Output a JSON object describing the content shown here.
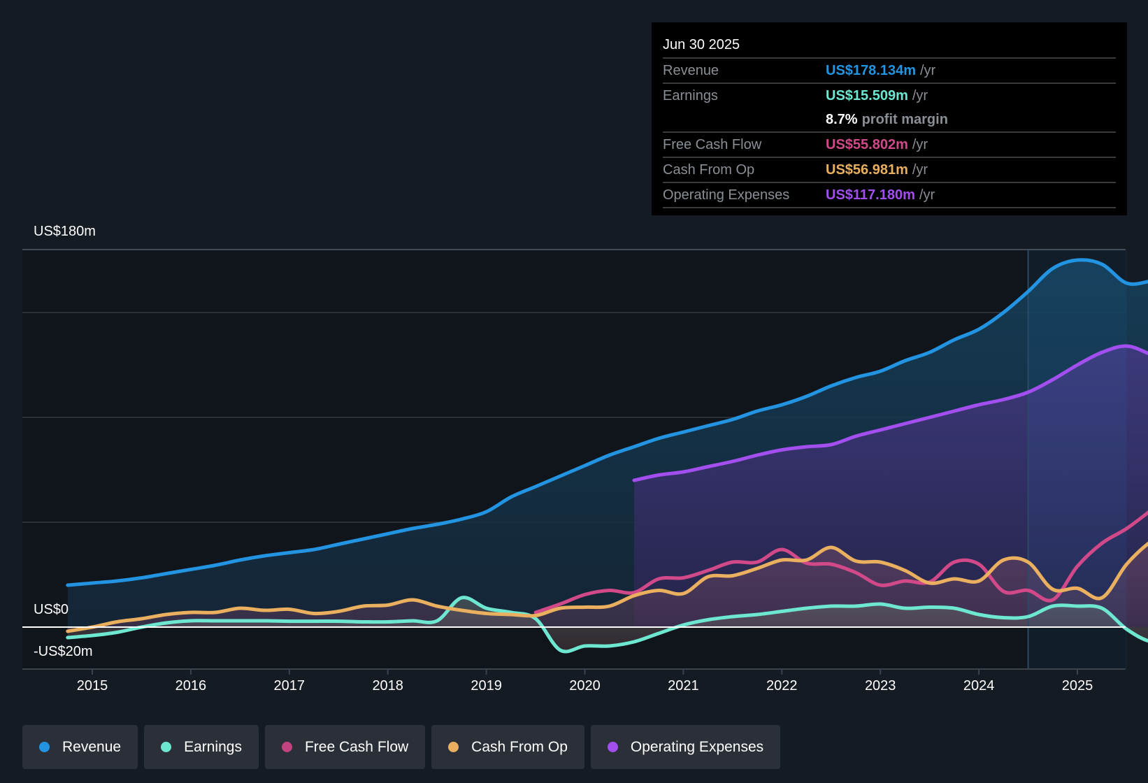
{
  "tooltip": {
    "date": "Jun 30 2025",
    "rows": [
      {
        "label": "Revenue",
        "value": "US$178.134m",
        "unit": "/yr",
        "color": "#2394e1"
      },
      {
        "label": "Earnings",
        "value": "US$15.509m",
        "unit": "/yr",
        "color": "#6ee7d1"
      },
      {
        "label": "",
        "value": "8.7%",
        "unit": "profit margin",
        "color": "#ffffff"
      },
      {
        "label": "Free Cash Flow",
        "value": "US$55.802m",
        "unit": "/yr",
        "color": "#d2498a"
      },
      {
        "label": "Cash From Op",
        "value": "US$56.981m",
        "unit": "/yr",
        "color": "#eab05f"
      },
      {
        "label": "Operating Expenses",
        "value": "US$117.180m",
        "unit": "/yr",
        "color": "#a34ff0"
      }
    ]
  },
  "legend": [
    {
      "label": "Revenue",
      "color": "#2394e1"
    },
    {
      "label": "Earnings",
      "color": "#6ee7d1"
    },
    {
      "label": "Free Cash Flow",
      "color": "#c2437f"
    },
    {
      "label": "Cash From Op",
      "color": "#eab05f"
    },
    {
      "label": "Operating Expenses",
      "color": "#a34ff0"
    }
  ],
  "chart_data": {
    "type": "area",
    "title": "",
    "xlabel": "",
    "ylabel": "",
    "ylim": [
      -20,
      180
    ],
    "xlim": [
      2014.75,
      2025.5
    ],
    "y_tick_labels": [
      {
        "value": 180,
        "label": "US$180m"
      },
      {
        "value": 0,
        "label": "US$0"
      },
      {
        "value": -20,
        "label": "-US$20m"
      }
    ],
    "gridlines": [
      180,
      150,
      100,
      50
    ],
    "x_ticks": [
      2015,
      2016,
      2017,
      2018,
      2019,
      2020,
      2021,
      2022,
      2023,
      2024,
      2025
    ],
    "x_tick_labels": [
      "2015",
      "2016",
      "2017",
      "2018",
      "2019",
      "2020",
      "2021",
      "2022",
      "2023",
      "2024",
      "2025"
    ],
    "highlight_from": 2024.5,
    "series": [
      {
        "name": "Revenue",
        "color": "#2394e1",
        "x_start": 2014.75,
        "step": 0.25,
        "values": [
          20,
          21,
          22,
          23.5,
          25.5,
          27.5,
          29.5,
          32,
          34,
          35.5,
          37,
          39.5,
          42,
          44.5,
          47,
          49,
          51.5,
          55,
          62,
          67,
          72,
          77,
          82,
          86,
          90,
          93,
          96,
          99,
          103,
          106,
          110,
          115,
          119,
          122,
          127,
          131,
          137,
          142,
          150,
          160,
          171,
          175,
          173,
          164,
          165,
          167,
          172,
          173,
          177,
          178.1
        ]
      },
      {
        "name": "Operating Expenses",
        "color": "#a34ff0",
        "x_start": 2020.5,
        "step": 0.25,
        "values": [
          70,
          72.5,
          74,
          76.5,
          79,
          82,
          84.5,
          86,
          87,
          91,
          94,
          97,
          100,
          103,
          106,
          108.5,
          112,
          118,
          125,
          131,
          134,
          130,
          126,
          121,
          117.2
        ]
      },
      {
        "name": "Cash From Op",
        "color": "#eab05f",
        "x_start": 2014.75,
        "step": 0.25,
        "values": [
          -2,
          0,
          2.5,
          4,
          6,
          7,
          7,
          9,
          8,
          8.5,
          6.5,
          7.5,
          10,
          10.5,
          13,
          10,
          8,
          6.5,
          6,
          5.5,
          9,
          9.5,
          10,
          15,
          17.5,
          16,
          24,
          24.5,
          28,
          32,
          32,
          38,
          31.5,
          31,
          27,
          21,
          23,
          22,
          32,
          31,
          18,
          18.5,
          14,
          30,
          41,
          48,
          57
        ]
      },
      {
        "name": "Free Cash Flow",
        "color": "#d2498a",
        "x_start": 2019.5,
        "step": 0.25,
        "values": [
          7,
          11,
          15.5,
          17.5,
          16.5,
          23,
          23.5,
          27,
          31,
          31,
          37,
          30.5,
          30,
          26,
          20,
          22,
          21.5,
          31,
          30,
          17,
          17.5,
          13,
          29,
          40,
          47,
          55.8
        ]
      },
      {
        "name": "Earnings",
        "color": "#6ee7d1",
        "x_start": 2014.75,
        "step": 0.25,
        "values": [
          -5,
          -4,
          -2.5,
          0,
          2,
          3,
          3,
          3,
          3,
          2.8,
          2.8,
          2.8,
          2.5,
          2.5,
          3,
          3,
          14,
          9,
          7,
          4,
          -11,
          -9,
          -9,
          -7,
          -3,
          1,
          3.5,
          5,
          6,
          7.5,
          9,
          10,
          10,
          11,
          9,
          9.5,
          9,
          6,
          4.5,
          5,
          10,
          10,
          9,
          -1,
          -7,
          -6.5,
          3,
          4.5,
          14,
          15.5
        ]
      }
    ]
  }
}
